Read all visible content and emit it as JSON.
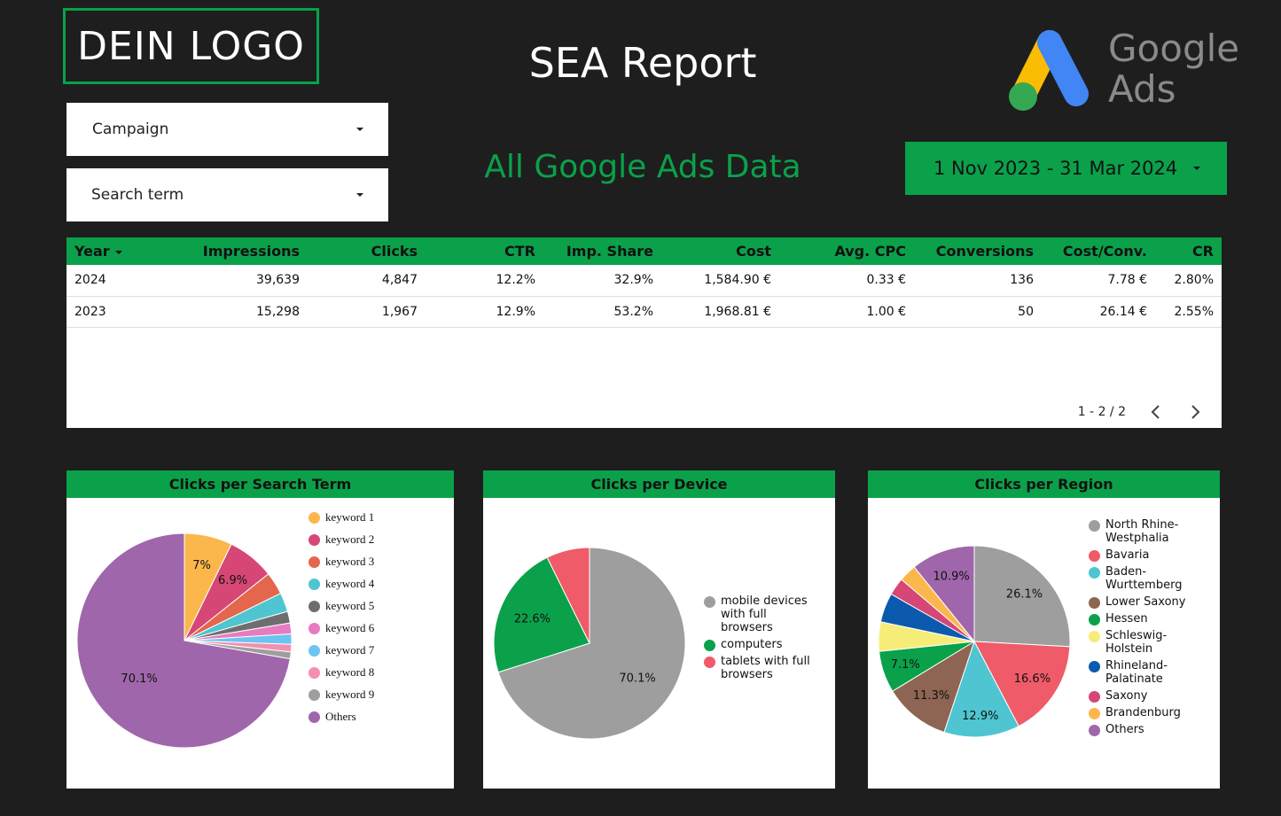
{
  "header": {
    "logo_text": "DEIN LOGO",
    "title": "SEA Report",
    "brand_logo": {
      "line1": "Google",
      "line2": "Ads"
    }
  },
  "filters": {
    "campaign_label": "Campaign",
    "search_term_label": "Search term"
  },
  "subtitle": "All Google Ads Data",
  "date_range": "1 Nov 2023 - 31 Mar 2024",
  "colors": {
    "accent": "#0aa14a",
    "background": "#1e1e1e",
    "gads_yellow": "#fbbc04",
    "gads_blue": "#4285f4",
    "gads_green": "#34a853"
  },
  "table": {
    "columns": [
      "Year",
      "Impressions",
      "Clicks",
      "CTR",
      "Imp. Share",
      "Cost",
      "Avg. CPC",
      "Conversions",
      "Cost/Conv.",
      "CR"
    ],
    "rows": [
      [
        "2024",
        "39,639",
        "4,847",
        "12.2%",
        "32.9%",
        "1,584.90 €",
        "0.33 €",
        "136",
        "7.78 €",
        "2.80%"
      ],
      [
        "2023",
        "15,298",
        "1,967",
        "12.9%",
        "53.2%",
        "1,968.81 €",
        "1.00 €",
        "50",
        "26.14 €",
        "2.55%"
      ]
    ],
    "pagination": "1 - 2 / 2"
  },
  "chart_data": [
    {
      "type": "pie",
      "title": "Clicks per Search Term",
      "labels": [
        "keyword 1",
        "keyword 2",
        "keyword 3",
        "keyword 4",
        "keyword 5",
        "keyword 6",
        "keyword 7",
        "keyword 8",
        "keyword 9",
        "Others"
      ],
      "values": [
        7.0,
        6.9,
        3.3,
        2.8,
        1.7,
        1.6,
        1.5,
        1.1,
        1.0,
        70.1
      ],
      "data_labels": [
        "7%",
        "6.9%",
        "",
        "",
        "",
        "",
        "",
        "",
        "",
        "70.1%"
      ],
      "colors": [
        "#fbb74c",
        "#d64775",
        "#e4664d",
        "#4fc5d1",
        "#6e6e6e",
        "#e77bc2",
        "#6cc4f0",
        "#f48fb1",
        "#9e9e9e",
        "#a066ab"
      ],
      "legend_position": "right"
    },
    {
      "type": "pie",
      "title": "Clicks per Device",
      "labels": [
        "mobile devices with full browsers",
        "computers",
        "tablets with full browsers"
      ],
      "values": [
        70.1,
        22.6,
        7.3
      ],
      "data_labels": [
        "70.1%",
        "22.6%",
        ""
      ],
      "colors": [
        "#9e9e9e",
        "#0aa14a",
        "#ef5b68"
      ],
      "legend_position": "right"
    },
    {
      "type": "pie",
      "title": "Clicks per Region",
      "labels": [
        "North Rhine-Westphalia",
        "Bavaria",
        "Baden-Wurttemberg",
        "Lower Saxony",
        "Hessen",
        "Schleswig-Holstein",
        "Rhineland-Palatinate",
        "Saxony",
        "Brandenburg",
        "Others"
      ],
      "values": [
        26.1,
        16.6,
        12.9,
        11.3,
        7.1,
        5.0,
        5.0,
        3.0,
        3.0,
        10.9
      ],
      "data_labels": [
        "26.1%",
        "16.6%",
        "12.9%",
        "11.3%",
        "7.1%",
        "",
        "",
        "",
        "",
        "10.9%"
      ],
      "colors": [
        "#9e9e9e",
        "#ef5b68",
        "#4fc5d1",
        "#8d6552",
        "#0aa14a",
        "#f6ec78",
        "#0b5aae",
        "#d64775",
        "#fbb74c",
        "#a066ab"
      ],
      "legend_position": "right"
    }
  ]
}
